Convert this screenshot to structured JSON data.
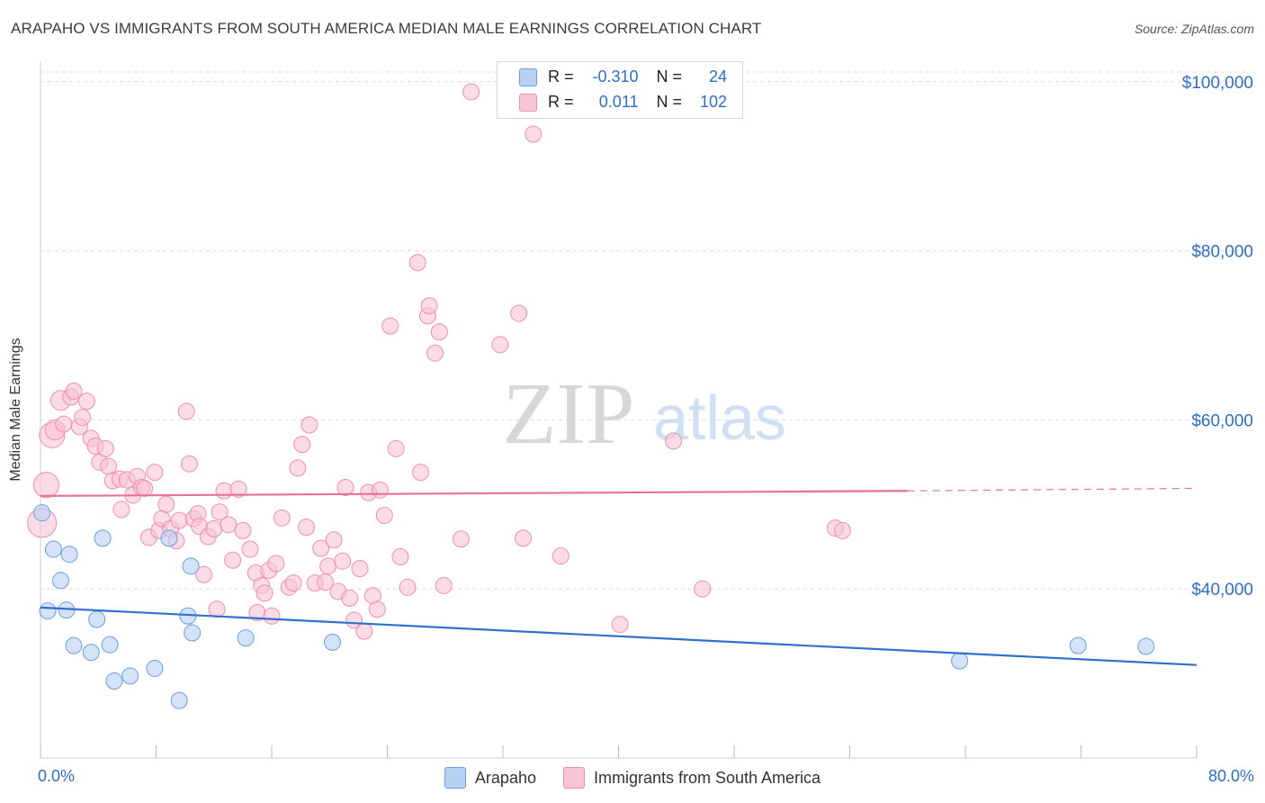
{
  "title": "ARAPAHO VS IMMIGRANTS FROM SOUTH AMERICA MEDIAN MALE EARNINGS CORRELATION CHART",
  "source": "Source: ZipAtlas.com",
  "watermark": {
    "zip": "ZIP",
    "atlas": "atlas"
  },
  "legend_top": {
    "rows": [
      {
        "r_label": "R =",
        "r_value": "-0.310",
        "n_label": "N =",
        "n_value": "24"
      },
      {
        "r_label": "R =",
        "r_value": "0.011",
        "n_label": "N =",
        "n_value": "102"
      }
    ]
  },
  "x_labels": {
    "left": "0.0%",
    "right": "80.0%"
  },
  "colors": {
    "blue_fill": "#b7d1f3",
    "blue_stroke": "#6a9ee0",
    "blue_line": "#2f72cc",
    "pink_fill": "#f8c3d4",
    "pink_stroke": "#ee8fae",
    "pink_line": "#e8719a",
    "axis_text": "#2f6fc3",
    "grid": "#dddddd"
  },
  "chart_data": {
    "type": "scatter",
    "title": "ARAPAHO VS IMMIGRANTS FROM SOUTH AMERICA MEDIAN MALE EARNINGS CORRELATION CHART",
    "xlabel": "",
    "ylabel": "Median Male Earnings",
    "xlim": [
      0,
      80
    ],
    "ylim": [
      20000,
      102000
    ],
    "y_ticks": [
      {
        "value": 40000,
        "label": "$40,000"
      },
      {
        "value": 60000,
        "label": "$60,000"
      },
      {
        "value": 80000,
        "label": "$80,000"
      },
      {
        "value": 100000,
        "label": "$100,000"
      }
    ],
    "grid": true,
    "series": [
      {
        "name": "Arapaho",
        "color": "blue",
        "trend": {
          "x": [
            0,
            80
          ],
          "y": [
            37800,
            31000
          ],
          "dashed_from": null
        },
        "points": [
          [
            0.1,
            49000,
            9
          ],
          [
            0.5,
            37400,
            9
          ],
          [
            0.9,
            44700,
            9
          ],
          [
            1.8,
            37500,
            9
          ],
          [
            2.0,
            44100,
            9
          ],
          [
            1.4,
            41000,
            9
          ],
          [
            2.3,
            33300,
            9
          ],
          [
            3.5,
            32500,
            9
          ],
          [
            3.9,
            36400,
            9
          ],
          [
            4.3,
            46000,
            9
          ],
          [
            4.8,
            33400,
            9
          ],
          [
            5.1,
            29100,
            9
          ],
          [
            6.2,
            29700,
            9
          ],
          [
            7.9,
            30600,
            9
          ],
          [
            8.9,
            46000,
            9
          ],
          [
            9.6,
            26800,
            9
          ],
          [
            10.2,
            36800,
            9
          ],
          [
            10.4,
            42700,
            9
          ],
          [
            10.5,
            34800,
            9
          ],
          [
            14.2,
            34200,
            9
          ],
          [
            20.2,
            33700,
            9
          ],
          [
            63.6,
            31500,
            9
          ],
          [
            71.8,
            33300,
            9
          ],
          [
            76.5,
            33200,
            9
          ]
        ]
      },
      {
        "name": "Immigrants from South America",
        "color": "pink",
        "trend": {
          "x": [
            0,
            60,
            80
          ],
          "y": [
            51000,
            51600,
            51900
          ],
          "dashed_from": 60
        },
        "points": [
          [
            0.1,
            47800,
            16
          ],
          [
            0.4,
            52300,
            14
          ],
          [
            0.8,
            58200,
            14
          ],
          [
            1.0,
            58800,
            11
          ],
          [
            1.4,
            62300,
            11
          ],
          [
            1.6,
            59500,
            9
          ],
          [
            2.1,
            62700,
            9
          ],
          [
            2.3,
            63400,
            9
          ],
          [
            2.7,
            59200,
            9
          ],
          [
            2.9,
            60300,
            9
          ],
          [
            3.2,
            62200,
            9
          ],
          [
            3.5,
            57800,
            9
          ],
          [
            3.8,
            56900,
            9
          ],
          [
            4.1,
            55000,
            9
          ],
          [
            4.5,
            56600,
            9
          ],
          [
            4.7,
            54500,
            9
          ],
          [
            5.0,
            52800,
            9
          ],
          [
            5.5,
            53000,
            9
          ],
          [
            5.6,
            49400,
            9
          ],
          [
            6.0,
            52900,
            9
          ],
          [
            6.4,
            51100,
            9
          ],
          [
            6.7,
            53300,
            9
          ],
          [
            7.0,
            52000,
            9
          ],
          [
            7.2,
            51900,
            9
          ],
          [
            7.5,
            46100,
            9
          ],
          [
            7.9,
            53800,
            9
          ],
          [
            8.2,
            46900,
            9
          ],
          [
            8.4,
            48300,
            9
          ],
          [
            8.7,
            50000,
            9
          ],
          [
            9.0,
            47100,
            9
          ],
          [
            9.4,
            45700,
            9
          ],
          [
            9.6,
            48100,
            9
          ],
          [
            10.1,
            61000,
            9
          ],
          [
            10.3,
            54800,
            9
          ],
          [
            10.6,
            48300,
            9
          ],
          [
            10.9,
            48900,
            9
          ],
          [
            11.0,
            47400,
            9
          ],
          [
            11.3,
            41700,
            9
          ],
          [
            11.6,
            46200,
            9
          ],
          [
            12.0,
            47100,
            9
          ],
          [
            12.2,
            37600,
            9
          ],
          [
            12.4,
            49100,
            9
          ],
          [
            12.7,
            51600,
            9
          ],
          [
            13.0,
            47600,
            9
          ],
          [
            13.3,
            43400,
            9
          ],
          [
            13.7,
            51800,
            9
          ],
          [
            14.0,
            46900,
            9
          ],
          [
            14.5,
            44700,
            9
          ],
          [
            14.9,
            41900,
            9
          ],
          [
            15.0,
            37200,
            9
          ],
          [
            15.3,
            40400,
            9
          ],
          [
            15.5,
            39500,
            9
          ],
          [
            15.8,
            42200,
            9
          ],
          [
            16.0,
            36800,
            9
          ],
          [
            16.3,
            43000,
            9
          ],
          [
            16.7,
            48400,
            9
          ],
          [
            17.2,
            40200,
            9
          ],
          [
            17.5,
            40700,
            9
          ],
          [
            17.8,
            54300,
            9
          ],
          [
            18.1,
            57100,
            9
          ],
          [
            18.4,
            47300,
            9
          ],
          [
            18.6,
            59400,
            9
          ],
          [
            19.0,
            40700,
            9
          ],
          [
            19.4,
            44800,
            9
          ],
          [
            19.7,
            40800,
            9
          ],
          [
            19.9,
            42700,
            9
          ],
          [
            20.3,
            45800,
            9
          ],
          [
            20.6,
            39700,
            9
          ],
          [
            20.9,
            43300,
            9
          ],
          [
            21.1,
            52000,
            9
          ],
          [
            21.4,
            38900,
            9
          ],
          [
            21.7,
            36300,
            9
          ],
          [
            22.1,
            42400,
            9
          ],
          [
            22.4,
            35000,
            9
          ],
          [
            22.7,
            51400,
            9
          ],
          [
            23.0,
            39200,
            9
          ],
          [
            23.3,
            37600,
            9
          ],
          [
            23.5,
            51700,
            9
          ],
          [
            23.8,
            48700,
            9
          ],
          [
            24.2,
            71100,
            9
          ],
          [
            24.6,
            56600,
            9
          ],
          [
            24.9,
            43800,
            9
          ],
          [
            25.4,
            40200,
            9
          ],
          [
            26.1,
            78600,
            9
          ],
          [
            26.3,
            53800,
            9
          ],
          [
            26.8,
            72300,
            9
          ],
          [
            26.9,
            73500,
            9
          ],
          [
            27.3,
            67900,
            9
          ],
          [
            27.6,
            70400,
            9
          ],
          [
            27.9,
            40400,
            9
          ],
          [
            29.1,
            45900,
            9
          ],
          [
            29.8,
            98800,
            9
          ],
          [
            31.8,
            68900,
            9
          ],
          [
            33.1,
            72600,
            9
          ],
          [
            33.4,
            46000,
            9
          ],
          [
            34.1,
            93800,
            9
          ],
          [
            36.0,
            43900,
            9
          ],
          [
            40.1,
            35800,
            9
          ],
          [
            43.8,
            57500,
            9
          ],
          [
            45.8,
            40000,
            9
          ],
          [
            55.0,
            47200,
            9
          ],
          [
            55.5,
            46900,
            9
          ]
        ]
      }
    ]
  }
}
